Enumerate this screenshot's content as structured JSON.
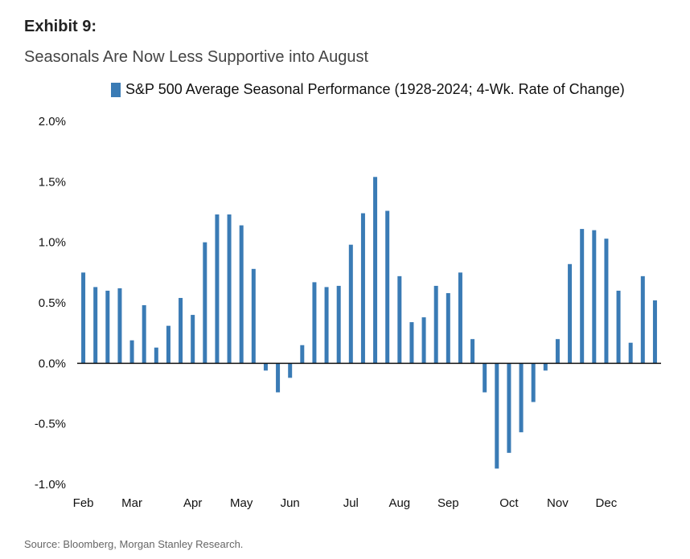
{
  "header": {
    "exhibit": "Exhibit 9:",
    "subtitle": "Seasonals Are Now Less Supportive into August"
  },
  "source": "Source: Bloomberg, Morgan Stanley Research.",
  "colors": {
    "bar": "#3a7bb5",
    "axis": "#111111"
  },
  "chart_data": {
    "type": "bar",
    "title": "Seasonals Are Now Less Supportive into August",
    "xlabel": "",
    "ylabel": "",
    "ylim": [
      -1.0,
      2.0
    ],
    "yticks": [
      "2.0%",
      "1.5%",
      "1.0%",
      "0.5%",
      "0.0%",
      "-0.5%",
      "-1.0%"
    ],
    "ytick_values": [
      2.0,
      1.5,
      1.0,
      0.5,
      0.0,
      -0.5,
      -1.0
    ],
    "months": [
      "Feb",
      "Mar",
      "Apr",
      "May",
      "Jun",
      "Jul",
      "Aug",
      "Sep",
      "Oct",
      "Nov",
      "Dec"
    ],
    "month_bar_index": [
      0,
      4,
      9,
      13,
      17,
      22,
      26,
      30,
      35,
      39,
      43
    ],
    "series": [
      {
        "name": "S&P 500 Average Seasonal Performance (1928-2024; 4-Wk. Rate of Change)",
        "values": [
          0.75,
          0.63,
          0.6,
          0.62,
          0.19,
          0.48,
          0.13,
          0.31,
          0.54,
          0.4,
          1.0,
          1.23,
          1.23,
          1.14,
          0.78,
          -0.06,
          -0.24,
          -0.12,
          0.15,
          0.67,
          0.63,
          0.64,
          0.98,
          1.24,
          1.54,
          1.26,
          0.72,
          0.34,
          0.38,
          0.64,
          0.58,
          0.75,
          0.2,
          -0.24,
          -0.87,
          -0.74,
          -0.57,
          -0.32,
          -0.06,
          0.2,
          0.82,
          1.11,
          1.1,
          1.03,
          0.6,
          0.17,
          0.72,
          0.52
        ]
      }
    ],
    "legend_position": "top"
  }
}
